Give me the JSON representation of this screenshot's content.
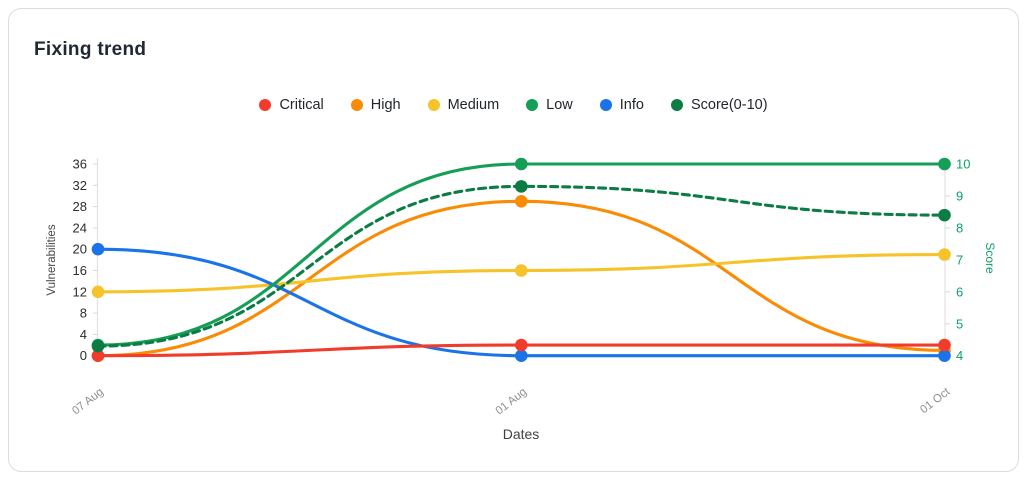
{
  "card": {
    "title": "Fixing trend"
  },
  "chart_data": {
    "type": "line",
    "title": "Fixing trend",
    "curve": "smooth",
    "grid": "off",
    "legend_position": "top",
    "categories": [
      "07 Aug",
      "01 Aug",
      "01 Oct"
    ],
    "xlabel": "Dates",
    "y_left": {
      "label": "Vulnerabilities",
      "min": 0,
      "max": 36,
      "ticks": [
        0,
        4,
        8,
        12,
        16,
        20,
        24,
        28,
        32,
        36
      ],
      "tick_color": "#2d2d2d"
    },
    "y_right": {
      "label": "Score",
      "min": 4,
      "max": 10,
      "ticks": [
        4,
        5,
        6,
        7,
        8,
        9,
        10
      ],
      "tick_color": "#11a066"
    },
    "series": [
      {
        "name": "Critical",
        "color": "#f13c2c",
        "axis": "left",
        "style": "solid",
        "values": [
          0,
          2,
          2
        ]
      },
      {
        "name": "High",
        "color": "#fa8b05",
        "axis": "left",
        "style": "solid",
        "values": [
          0,
          29,
          1
        ]
      },
      {
        "name": "Medium",
        "color": "#f6c32a",
        "axis": "left",
        "style": "solid",
        "values": [
          12,
          16,
          19
        ]
      },
      {
        "name": "Low",
        "color": "#149e56",
        "axis": "left",
        "style": "solid",
        "values": [
          2,
          36,
          36
        ]
      },
      {
        "name": "Info",
        "color": "#1a74e8",
        "axis": "left",
        "style": "solid",
        "values": [
          20,
          0,
          0
        ]
      },
      {
        "name": "Score(0-10)",
        "color": "#0b7d44",
        "axis": "right",
        "style": "dashed",
        "values": [
          4.3,
          9.3,
          8.4
        ]
      }
    ],
    "axis_line_color": "#e4e4e4",
    "x_tick_label_color": "#909090",
    "xlabel_color": "#3f4246"
  }
}
